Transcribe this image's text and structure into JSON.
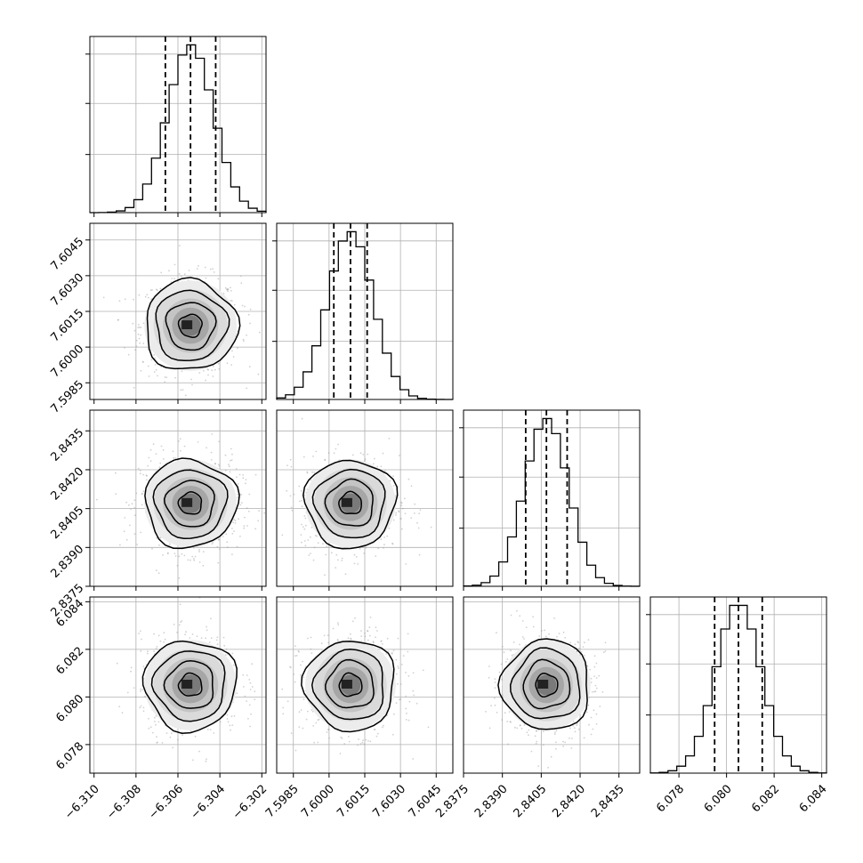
{
  "chart_data": {
    "type": "corner",
    "parameters": 4,
    "grid": true,
    "quantiles": [
      0.16,
      0.5,
      0.84
    ],
    "histogram_steps": 20,
    "panels": {
      "p0": {
        "xlim": [
          -6.3102,
          -6.3018
        ],
        "ticks": [
          -6.31,
          -6.308,
          -6.306,
          -6.304,
          -6.302
        ],
        "tick_labels": [
          "−6.310",
          "−6.308",
          "−6.306",
          "−6.304",
          "−6.302"
        ],
        "mean": -6.3054,
        "std": 0.0011,
        "quantile_values": [
          -6.3066,
          -6.3054,
          -6.3042
        ]
      },
      "p1": {
        "xlim": [
          7.5978,
          7.6052
        ],
        "ticks": [
          7.5985,
          7.6,
          7.6015,
          7.603,
          7.6045
        ],
        "tick_labels": [
          "7.5985",
          "7.6000",
          "7.6015",
          "7.6030",
          "7.6045"
        ],
        "mean": 7.6009,
        "std": 0.00095,
        "quantile_values": [
          7.6002,
          7.6009,
          7.6016
        ]
      },
      "p2": {
        "xlim": [
          2.8375,
          2.8443
        ],
        "ticks": [
          2.8375,
          2.839,
          2.8405,
          2.842,
          2.8435
        ],
        "tick_labels": [
          "2.8375",
          "2.8390",
          "2.8405",
          "2.8420",
          "2.8435"
        ],
        "mean": 2.8407,
        "std": 0.00085,
        "quantile_values": [
          2.8399,
          2.8407,
          2.8415
        ]
      },
      "p3": {
        "xlim": [
          6.0768,
          6.0842
        ],
        "ticks": [
          6.078,
          6.08,
          6.082,
          6.084
        ],
        "tick_labels": [
          "6.078",
          "6.080",
          "6.082",
          "6.084"
        ],
        "mean": 6.0805,
        "std": 0.00095,
        "quantile_values": [
          6.0795,
          6.0805,
          6.0815
        ]
      }
    }
  }
}
